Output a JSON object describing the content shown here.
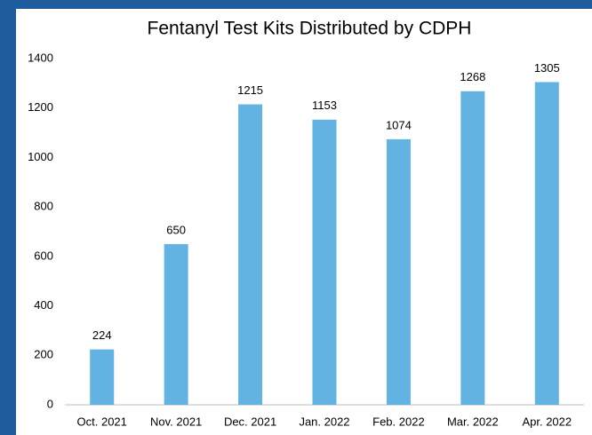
{
  "chart_data": {
    "type": "bar",
    "title": "Fentanyl Test Kits Distributed by CDPH",
    "categories": [
      "Oct. 2021",
      "Nov. 2021",
      "Dec. 2021",
      "Jan. 2022",
      "Feb. 2022",
      "Mar. 2022",
      "Apr. 2022"
    ],
    "values": [
      224,
      650,
      1215,
      1153,
      1074,
      1268,
      1305
    ],
    "color": "#63b3e2",
    "ylim": [
      0,
      1400
    ],
    "yticks": [
      0,
      200,
      400,
      600,
      800,
      1000,
      1200,
      1400
    ],
    "grid": false,
    "data_labels": true
  }
}
